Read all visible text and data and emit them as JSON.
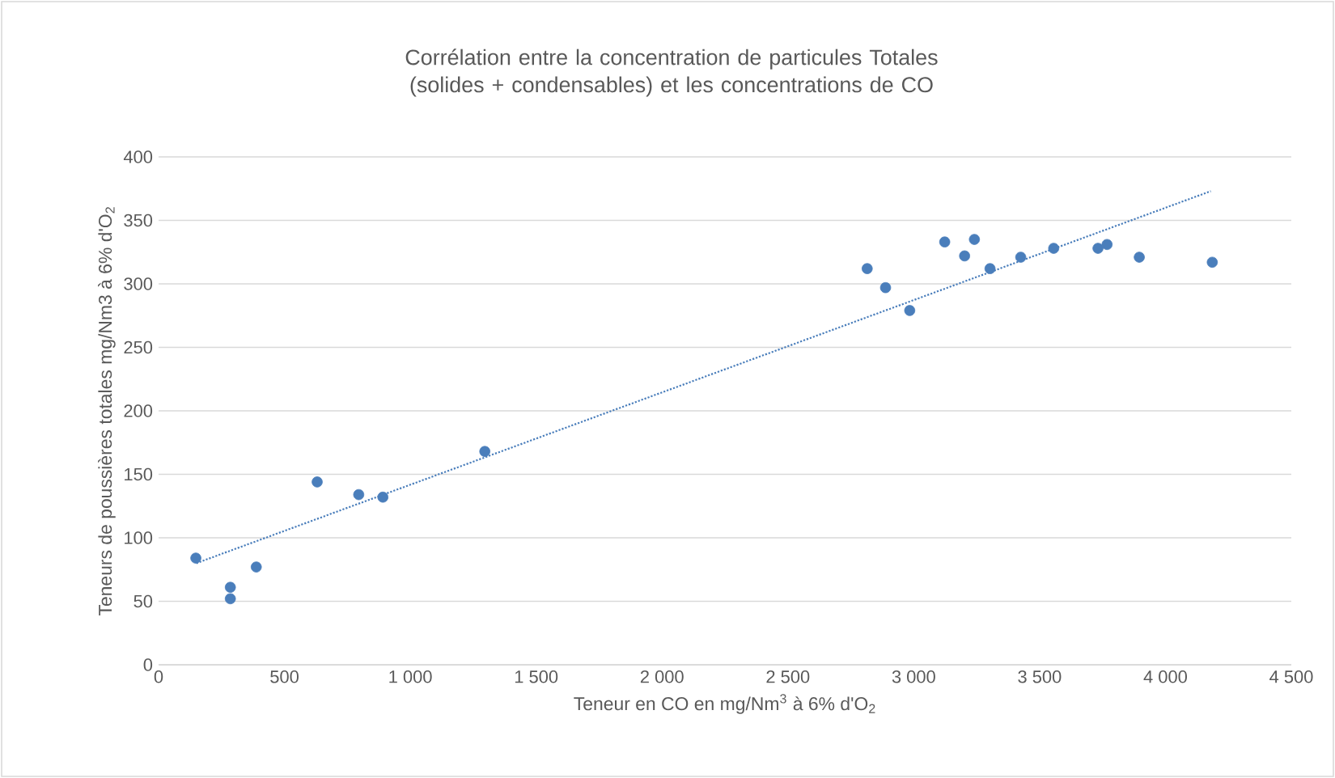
{
  "chart_data": {
    "type": "scatter",
    "title": "Corrélation entre la concentration de particules Totales (solides + condensables) et les concentrations de CO",
    "xlabel": "Teneur en CO en mg/Nm$^{3}$ à 6% d'O$_{2}$",
    "ylabel": "Teneurs de poussières totales mg/Nm3 à 6% d'O$_{2}$",
    "xlim": [
      0,
      4500
    ],
    "xticks": [
      0,
      500,
      {
        "value": 1000,
        "label": "1 000"
      },
      {
        "value": 1500,
        "label": "1 500"
      },
      {
        "value": 2000,
        "label": "2 000"
      },
      {
        "value": 2500,
        "label": "2 500"
      },
      {
        "value": 3000,
        "label": "3 000"
      },
      {
        "value": 3500,
        "label": "3 500"
      },
      {
        "value": 4000,
        "label": "4 000"
      },
      {
        "value": 4500,
        "label": "4 500"
      }
    ],
    "ylim": [
      0,
      400
    ],
    "yticks": [
      0,
      50,
      100,
      150,
      200,
      250,
      300,
      350,
      400
    ],
    "grid": "y",
    "series": [
      {
        "color": "#4a7ebb",
        "marker": "circle",
        "x": [
          148,
          285,
          285,
          388,
          630,
          795,
          891,
          1296,
          2815,
          2888,
          2984,
          3123,
          3202,
          3241,
          3303,
          3425,
          3556,
          3732,
          3768,
          3896,
          4186
        ],
        "values": [
          84,
          61,
          52,
          77,
          144,
          134,
          132,
          168,
          312,
          297,
          279,
          333,
          322,
          335,
          312,
          321,
          328,
          328,
          331,
          321,
          317
        ]
      },
      {
        "type": "line",
        "color": "#4a7ebb",
        "marker": "none",
        "line_style": "dotted",
        "x": [
          150,
          4180
        ],
        "values": [
          80,
          373
        ]
      }
    ]
  }
}
